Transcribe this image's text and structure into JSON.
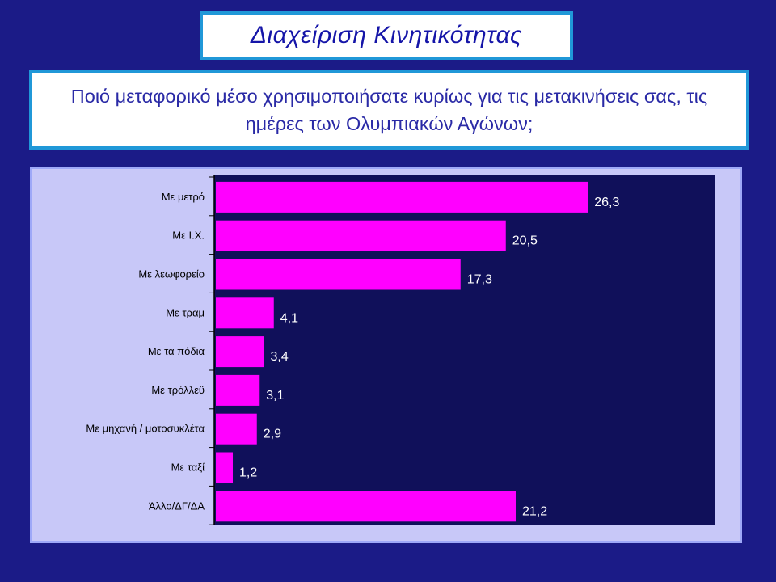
{
  "title": "Διαχείριση Κινητικότητας",
  "question": "Ποιό μεταφορικό μέσο χρησιμοποιήσατε κυρίως για τις μετακινήσεις σας, τις ημέρες των Ολυμπιακών Αγώνων;",
  "colors": {
    "background": "#1b1b87",
    "plot_area": "#10105a",
    "bar": "#ff00ff",
    "chart_frame": "#c8c8f8",
    "accent_border": "#2098d8"
  },
  "chart_data": {
    "type": "bar",
    "orientation": "horizontal",
    "categories": [
      "Με μετρό",
      "Με Ι.Χ.",
      "Με λεωφορείο",
      "Με τραμ",
      "Με τα πόδια",
      "Με τρόλλεϋ",
      "Με μηχανή / μοτοσυκλέτα",
      "Με ταξί",
      "Άλλο/ΔΓ/ΔΑ"
    ],
    "values": [
      26.3,
      20.5,
      17.3,
      4.1,
      3.4,
      3.1,
      2.9,
      1.2,
      21.2
    ],
    "value_labels": [
      "26,3",
      "20,5",
      "17,3",
      "4,1",
      "3,4",
      "3,1",
      "2,9",
      "1,2",
      "21,2"
    ],
    "xlim": [
      0,
      35
    ],
    "grid": false,
    "legend": "none"
  }
}
